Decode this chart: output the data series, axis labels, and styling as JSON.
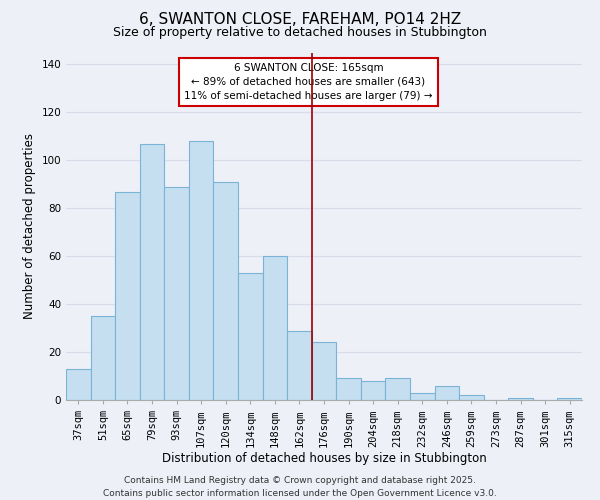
{
  "title": "6, SWANTON CLOSE, FAREHAM, PO14 2HZ",
  "subtitle": "Size of property relative to detached houses in Stubbington",
  "xlabel": "Distribution of detached houses by size in Stubbington",
  "ylabel": "Number of detached properties",
  "categories": [
    "37sqm",
    "51sqm",
    "65sqm",
    "79sqm",
    "93sqm",
    "107sqm",
    "120sqm",
    "134sqm",
    "148sqm",
    "162sqm",
    "176sqm",
    "190sqm",
    "204sqm",
    "218sqm",
    "232sqm",
    "246sqm",
    "259sqm",
    "273sqm",
    "287sqm",
    "301sqm",
    "315sqm"
  ],
  "values": [
    13,
    35,
    87,
    107,
    89,
    108,
    91,
    53,
    60,
    29,
    24,
    9,
    8,
    9,
    3,
    6,
    2,
    0,
    1,
    0,
    1
  ],
  "bar_color": "#c5dff0",
  "bar_edge_color": "#7ab3d4",
  "ylim": [
    0,
    145
  ],
  "yticks": [
    0,
    20,
    40,
    60,
    80,
    100,
    120,
    140
  ],
  "vline_x": 9.5,
  "vline_color": "#990000",
  "annotation_title": "6 SWANTON CLOSE: 165sqm",
  "annotation_line1": "← 89% of detached houses are smaller (643)",
  "annotation_line2": "11% of semi-detached houses are larger (79) →",
  "footer1": "Contains HM Land Registry data © Crown copyright and database right 2025.",
  "footer2": "Contains public sector information licensed under the Open Government Licence v3.0.",
  "background_color": "#eef0f8",
  "grid_color": "#d8dce8",
  "title_fontsize": 11,
  "subtitle_fontsize": 9,
  "axis_label_fontsize": 8.5,
  "tick_fontsize": 7.5,
  "annotation_fontsize": 7.5,
  "footer_fontsize": 6.5
}
